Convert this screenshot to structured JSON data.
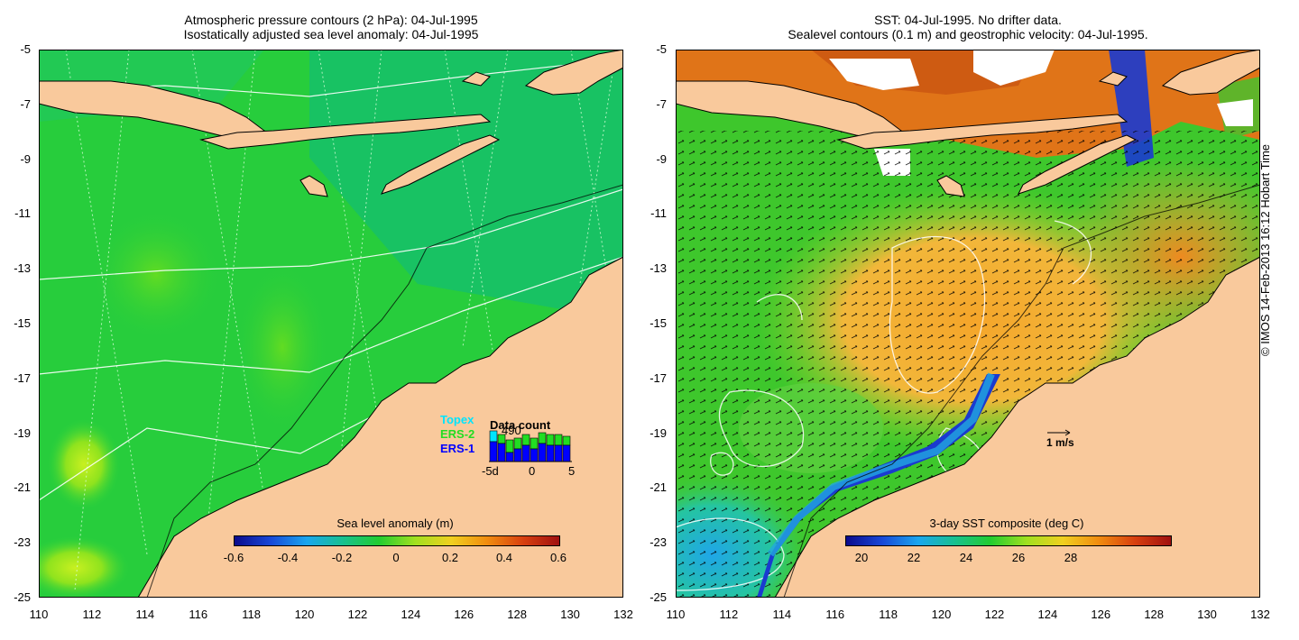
{
  "left_panel": {
    "title_line1": "Atmospheric pressure contours (2 hPa): 04-Jul-1995",
    "title_line2": "Isostatically adjusted sea level anomaly: 04-Jul-1995",
    "colorbar": {
      "title": "Sea level anomaly (m)",
      "ticks": [
        "-0.6",
        "-0.4",
        "-0.2",
        "0",
        "0.2",
        "0.4",
        "0.6"
      ]
    },
    "legend": {
      "topex": "Topex",
      "ers2": "ERS-2",
      "ers1": "ERS-1",
      "data_count_title": "Data count",
      "data_count_value": "490",
      "ticks": [
        "-5d",
        "0",
        "5"
      ],
      "colors": {
        "topex": "#00e5ff",
        "ers2": "#22dd22",
        "ers1": "#0000ff"
      }
    }
  },
  "right_panel": {
    "title_line1": "SST: 04-Jul-1995. No drifter data.",
    "title_line2": "Sealevel contours (0.1 m) and geostrophic velocity: 04-Jul-1995.",
    "colorbar": {
      "title": "3-day SST composite (deg C)",
      "ticks": [
        "20",
        "22",
        "24",
        "26",
        "28"
      ]
    },
    "velocity_scale": "1 m/s"
  },
  "axes": {
    "y_ticks": [
      "-5",
      "-7",
      "-9",
      "-11",
      "-13",
      "-15",
      "-17",
      "-19",
      "-21",
      "-23",
      "-25"
    ],
    "x_ticks": [
      "110",
      "112",
      "114",
      "116",
      "118",
      "120",
      "122",
      "124",
      "126",
      "128",
      "130",
      "132"
    ],
    "lon_range": [
      110,
      132
    ],
    "lat_range": [
      -25,
      -5
    ]
  },
  "credit": "© IMOS 14-Feb-2013 16:12 Hobart Time",
  "colors": {
    "land": "#f9c99c",
    "sea_left": "#22c84a",
    "sea_right": "#39c429",
    "sst_warm": "#f08c1e",
    "sst_cold": "#1540d8"
  }
}
